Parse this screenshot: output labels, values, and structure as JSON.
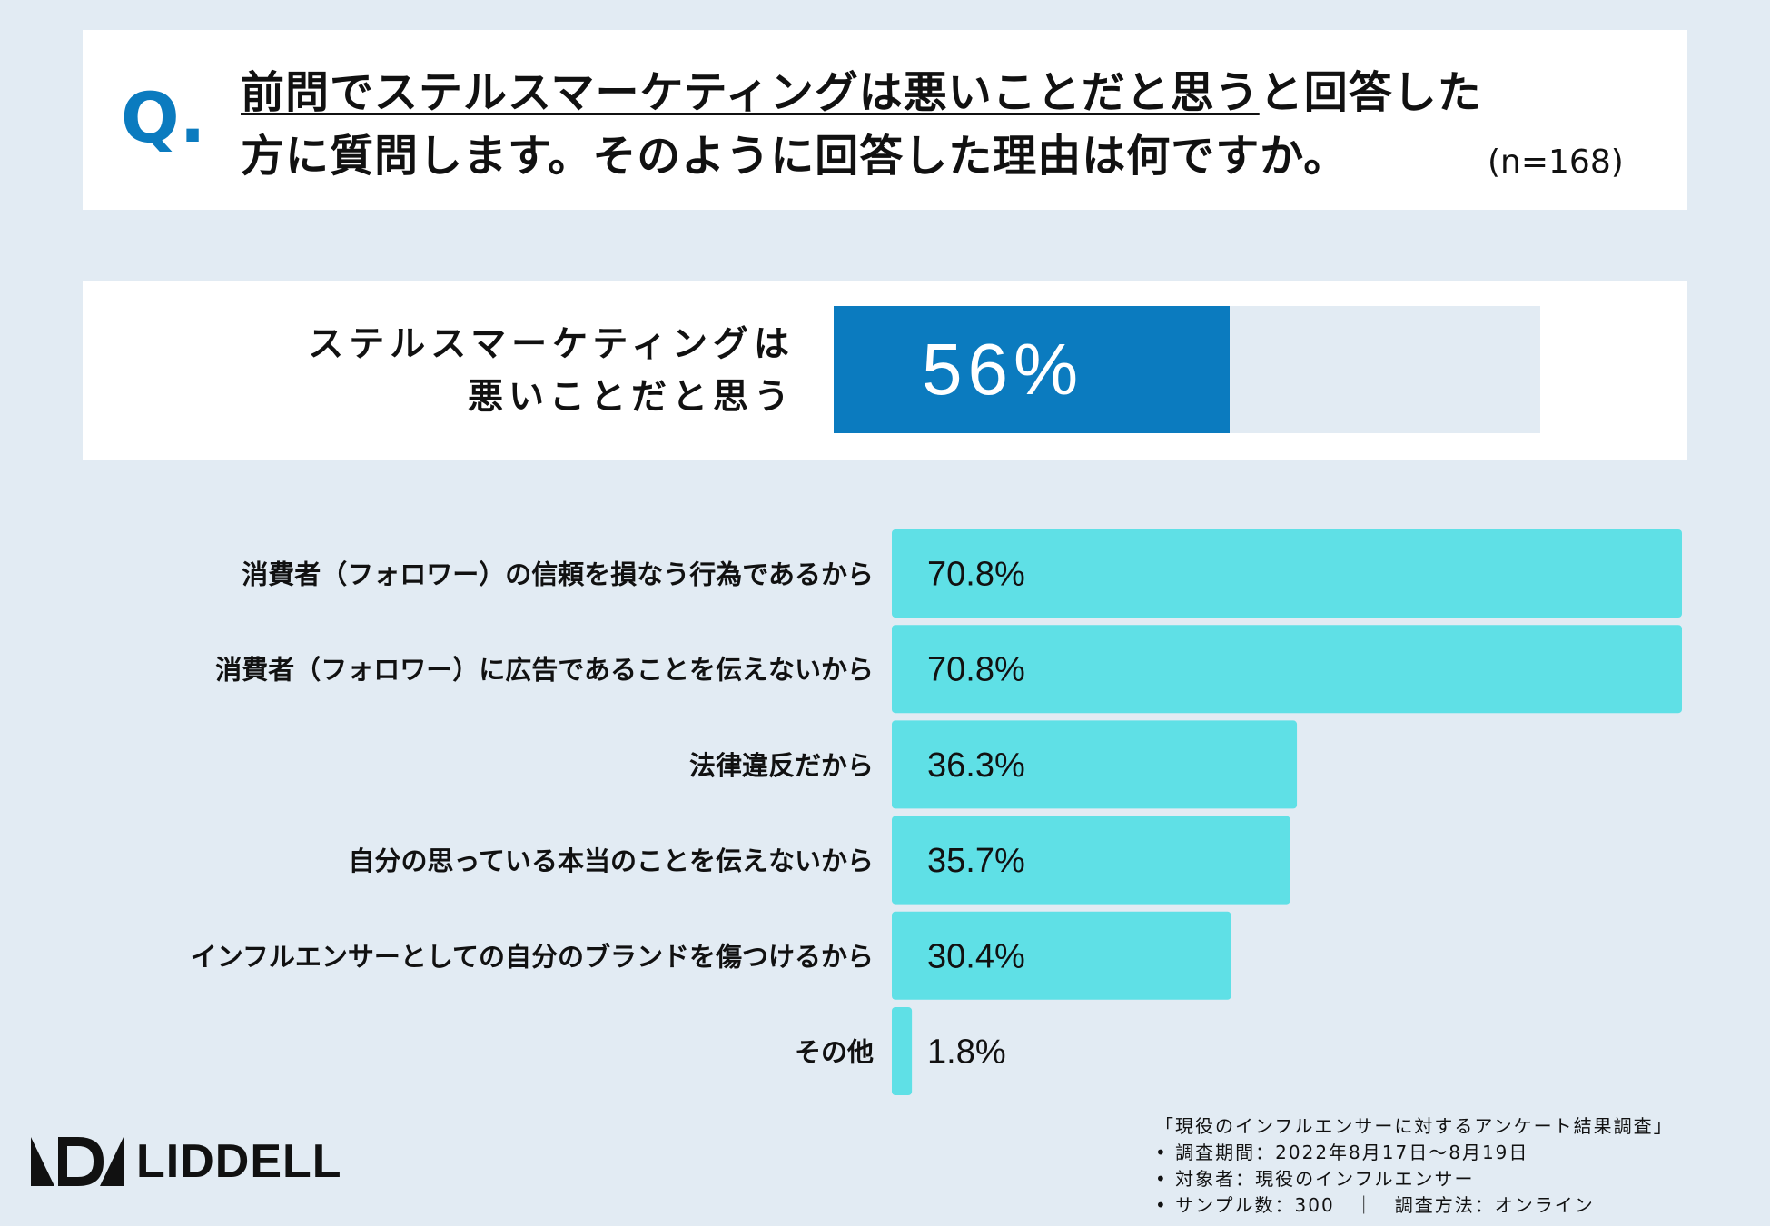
{
  "question": {
    "mark": "Q.",
    "line1_underlined": "前問でステルスマーケティングは悪いことだと思う",
    "line1_rest": "と回答した",
    "line2": "方に質問します。そのように回答した理由は何ですか。",
    "n_label": "(n=168)"
  },
  "headline": {
    "label_line1": "ステルスマーケティングは",
    "label_line2": "悪いことだと思う",
    "value_text": "56%",
    "value": 56
  },
  "chart_data": {
    "type": "bar",
    "orientation": "horizontal",
    "categories": [
      "消費者（フォロワー）の信頼を損なう行為であるから",
      "消費者（フォロワー）に広告であることを伝えないから",
      "法律違反だから",
      "自分の思っている本当のことを伝えないから",
      "インフルエンサーとしての自分のブランドを傷つけるから",
      "その他"
    ],
    "values": [
      70.8,
      70.8,
      36.3,
      35.7,
      30.4,
      1.8
    ],
    "value_labels": [
      "70.8%",
      "70.8%",
      "36.3%",
      "35.7%",
      "30.4%",
      "1.8%"
    ],
    "unit": "%",
    "xlim": [
      0,
      70.8
    ],
    "color": "#5fe0e6",
    "title": "",
    "xlabel": "",
    "ylabel": ""
  },
  "footer": {
    "source_title": "「現役のインフルエンサーに対するアンケート結果調査」",
    "period": "• 調査期間：2022年8月17日〜8月19日",
    "target": "• 対象者：現役のインフルエンサー",
    "sample": "• サンプル数：300　｜　調査方法：オンライン",
    "logo_text": "LIDDELL"
  },
  "colors": {
    "background": "#e2ebf3",
    "accent_blue": "#0b7bbf",
    "bar_cyan": "#5fe0e6"
  }
}
